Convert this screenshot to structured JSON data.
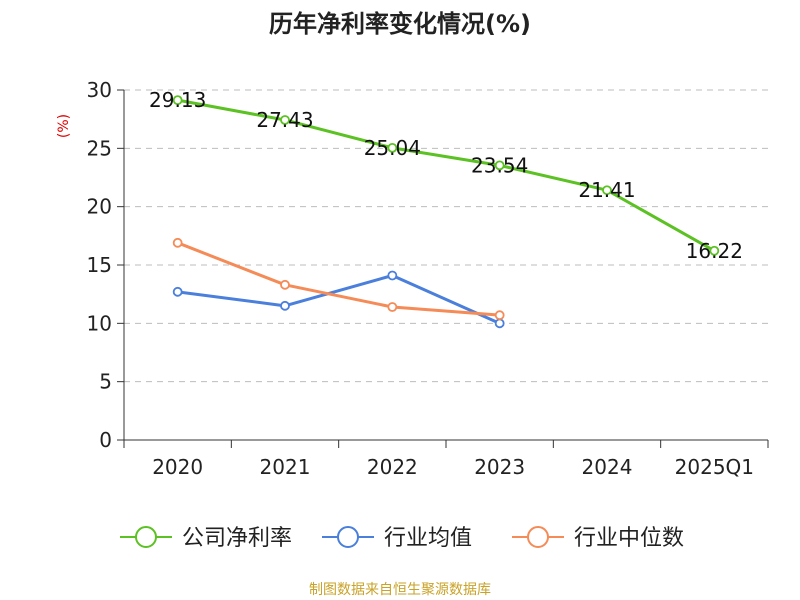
{
  "chart_data": {
    "type": "line",
    "title": "历年净利率变化情况(%)",
    "ylabel": "(%)",
    "categories": [
      "2020",
      "2021",
      "2022",
      "2023",
      "2024",
      "2025Q1"
    ],
    "ylim": [
      0,
      30
    ],
    "yticks": [
      0,
      5,
      10,
      15,
      20,
      25,
      30
    ],
    "grid": true,
    "legend_position": "bottom",
    "series": [
      {
        "name": "公司净利率",
        "color": "#5cc123",
        "values": [
          29.13,
          27.43,
          25.04,
          23.54,
          21.41,
          16.22
        ],
        "labels": [
          "29.13",
          "27.43",
          "25.04",
          "23.54",
          "21.41",
          "16.22"
        ]
      },
      {
        "name": "行业均值",
        "color": "#4a7fdc",
        "values": [
          12.7,
          11.5,
          14.1,
          10.0,
          null,
          null
        ]
      },
      {
        "name": "行业中位数",
        "color": "#f58b57",
        "values": [
          16.9,
          13.3,
          11.4,
          10.7,
          null,
          null
        ]
      }
    ]
  },
  "source": "制图数据来自恒生聚源数据库"
}
